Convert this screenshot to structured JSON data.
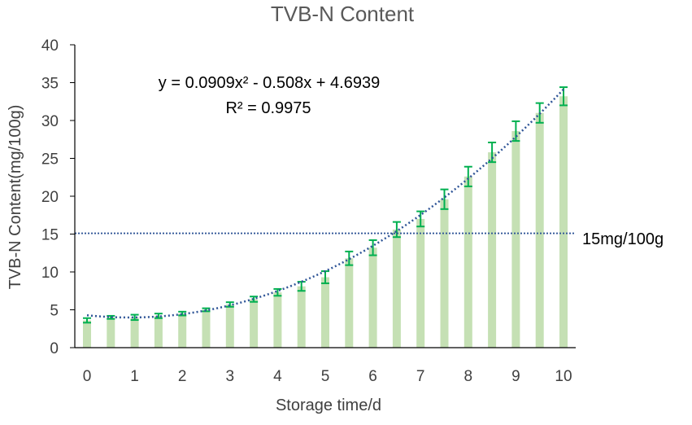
{
  "chart_data": {
    "type": "bar",
    "title": "TVB-N Content",
    "xlabel": "Storage time/d",
    "ylabel": "TVB-N Content(mg/100g)",
    "xlim": [
      0,
      10
    ],
    "ylim": [
      0,
      40
    ],
    "x_ticks": [
      "0",
      "1",
      "2",
      "3",
      "4",
      "5",
      "6",
      "7",
      "8",
      "9",
      "10"
    ],
    "y_ticks": [
      "0",
      "5",
      "10",
      "15",
      "20",
      "25",
      "30",
      "35",
      "40"
    ],
    "grid": false,
    "x": [
      0,
      0.5,
      1,
      1.5,
      2,
      2.5,
      3,
      3.5,
      4,
      4.5,
      5,
      5.5,
      6,
      6.5,
      7,
      7.5,
      8,
      8.5,
      9,
      9.5,
      10
    ],
    "values": [
      3.6,
      4.0,
      4.0,
      4.2,
      4.5,
      5.0,
      5.7,
      6.4,
      7.3,
      8.1,
      9.3,
      11.8,
      13.2,
      15.6,
      17.0,
      19.6,
      22.6,
      25.8,
      28.6,
      31.0,
      33.2
    ],
    "errors": [
      0.3,
      0.2,
      0.35,
      0.3,
      0.25,
      0.2,
      0.3,
      0.35,
      0.45,
      0.6,
      0.8,
      0.9,
      1.0,
      1.0,
      1.0,
      1.3,
      1.3,
      1.3,
      1.3,
      1.3,
      1.2
    ],
    "trendline": {
      "type": "polynomial",
      "coefficients": [
        0.0909,
        -0.508,
        4.6939
      ],
      "equation": "y = 0.0909x² - 0.508x + 4.6939",
      "r_squared": "R² = 0.9975"
    },
    "threshold": {
      "value": 15.1,
      "label": "15mg/100g"
    },
    "colors": {
      "bar": "#c5e0b4",
      "error_bar": "#00b050",
      "trendline": "#2f5597",
      "threshold": "#2f5597",
      "axis": "#000000"
    }
  }
}
